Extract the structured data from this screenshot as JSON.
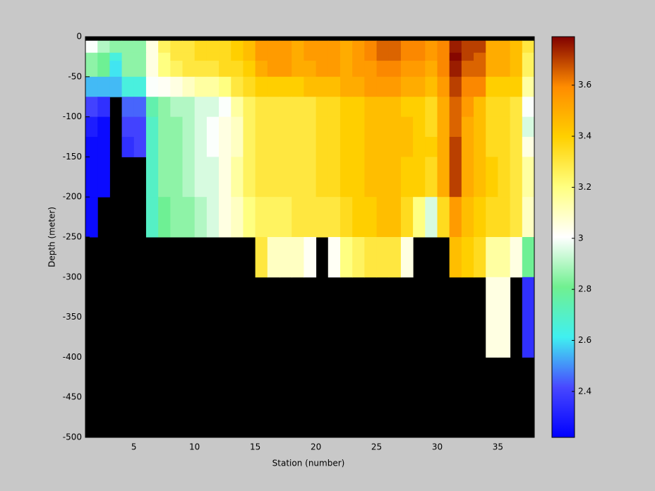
{
  "chart_data": {
    "type": "heatmap",
    "xlabel": "Station (number)",
    "ylabel": "Depth (meter)",
    "x": [
      1,
      2,
      3,
      4,
      5,
      6,
      7,
      8,
      9,
      10,
      11,
      12,
      13,
      14,
      15,
      16,
      17,
      18,
      19,
      20,
      21,
      22,
      23,
      24,
      25,
      26,
      27,
      28,
      29,
      30,
      31,
      32,
      33,
      34,
      35,
      36,
      37,
      38
    ],
    "y": [
      0,
      -5,
      -20,
      -30,
      -50,
      -75,
      -100,
      -125,
      -150,
      -200,
      -250,
      -300,
      -400,
      -500
    ],
    "values": [
      [
        null,
        null,
        null,
        null,
        null,
        null,
        null,
        null,
        null,
        null,
        null,
        null,
        null,
        null,
        null,
        null,
        null,
        null,
        null,
        null,
        null,
        null,
        null,
        null,
        null,
        null,
        null,
        null,
        null,
        null,
        null,
        null,
        null,
        null,
        null,
        null,
        null
      ],
      [
        3.0,
        2.9,
        2.85,
        2.85,
        2.85,
        3.05,
        3.25,
        3.3,
        3.3,
        3.35,
        3.35,
        3.35,
        3.4,
        3.45,
        3.55,
        3.55,
        3.55,
        3.5,
        3.55,
        3.55,
        3.55,
        3.5,
        3.55,
        3.6,
        3.65,
        3.65,
        3.6,
        3.6,
        3.55,
        3.6,
        3.75,
        3.7,
        3.7,
        3.5,
        3.5,
        3.45,
        3.3
      ],
      [
        2.85,
        2.8,
        2.65,
        2.85,
        2.85,
        3.05,
        3.2,
        3.3,
        3.3,
        3.35,
        3.35,
        3.35,
        3.4,
        3.45,
        3.55,
        3.55,
        3.55,
        3.5,
        3.55,
        3.55,
        3.55,
        3.5,
        3.55,
        3.6,
        3.65,
        3.65,
        3.6,
        3.6,
        3.55,
        3.6,
        3.78,
        3.7,
        3.65,
        3.5,
        3.5,
        3.45,
        3.25
      ],
      [
        2.85,
        2.8,
        2.6,
        2.85,
        2.85,
        3.05,
        3.2,
        3.25,
        3.3,
        3.3,
        3.3,
        3.35,
        3.35,
        3.4,
        3.5,
        3.55,
        3.55,
        3.5,
        3.5,
        3.55,
        3.55,
        3.5,
        3.55,
        3.55,
        3.6,
        3.6,
        3.55,
        3.55,
        3.5,
        3.6,
        3.75,
        3.65,
        3.65,
        3.5,
        3.5,
        3.45,
        3.25
      ],
      [
        2.55,
        2.55,
        2.55,
        2.65,
        2.65,
        3.0,
        3.02,
        3.05,
        3.1,
        3.15,
        3.15,
        3.2,
        3.3,
        3.35,
        3.4,
        3.4,
        3.4,
        3.4,
        3.45,
        3.45,
        3.45,
        3.5,
        3.5,
        3.55,
        3.55,
        3.55,
        3.5,
        3.5,
        3.45,
        3.55,
        3.7,
        3.6,
        3.6,
        3.4,
        3.4,
        3.4,
        3.15
      ],
      [
        2.4,
        2.35,
        null,
        2.45,
        2.45,
        2.75,
        2.85,
        2.9,
        2.9,
        2.95,
        2.95,
        3.0,
        3.15,
        3.25,
        3.3,
        3.3,
        3.3,
        3.3,
        3.3,
        3.35,
        3.35,
        3.4,
        3.4,
        3.45,
        3.45,
        3.45,
        3.4,
        3.4,
        3.35,
        3.5,
        3.65,
        3.55,
        3.45,
        3.35,
        3.35,
        3.3,
        3.0
      ],
      [
        2.3,
        2.25,
        null,
        2.4,
        2.4,
        2.7,
        2.85,
        2.85,
        2.9,
        2.95,
        3.0,
        3.05,
        3.1,
        3.25,
        3.3,
        3.3,
        3.3,
        3.3,
        3.3,
        3.35,
        3.35,
        3.4,
        3.4,
        3.45,
        3.45,
        3.45,
        3.45,
        3.4,
        3.35,
        3.5,
        3.65,
        3.5,
        3.45,
        3.35,
        3.35,
        3.3,
        2.95
      ],
      [
        2.25,
        2.25,
        null,
        2.35,
        2.4,
        2.7,
        2.85,
        2.85,
        2.9,
        2.95,
        3.0,
        3.05,
        3.1,
        3.25,
        3.3,
        3.3,
        3.3,
        3.3,
        3.3,
        3.35,
        3.35,
        3.4,
        3.4,
        3.45,
        3.45,
        3.45,
        3.45,
        3.4,
        3.4,
        3.5,
        3.7,
        3.5,
        3.45,
        3.35,
        3.35,
        3.3,
        3.05
      ],
      [
        2.25,
        2.25,
        null,
        null,
        null,
        2.7,
        2.85,
        2.85,
        2.9,
        2.95,
        2.95,
        3.05,
        3.15,
        3.25,
        3.3,
        3.3,
        3.3,
        3.3,
        3.3,
        3.35,
        3.35,
        3.4,
        3.4,
        3.45,
        3.45,
        3.45,
        3.4,
        3.4,
        3.35,
        3.5,
        3.7,
        3.5,
        3.45,
        3.4,
        3.35,
        3.3,
        3.15
      ],
      [
        2.25,
        null,
        null,
        null,
        null,
        2.7,
        2.8,
        2.85,
        2.85,
        2.9,
        2.95,
        3.05,
        3.1,
        3.2,
        3.25,
        3.25,
        3.25,
        3.3,
        3.3,
        3.3,
        3.3,
        3.35,
        3.4,
        3.4,
        3.45,
        3.45,
        3.35,
        3.2,
        2.95,
        3.35,
        3.55,
        3.45,
        3.4,
        3.35,
        3.35,
        3.3,
        3.1
      ],
      [
        null,
        null,
        null,
        null,
        null,
        null,
        null,
        null,
        null,
        null,
        null,
        null,
        null,
        null,
        3.3,
        3.1,
        3.1,
        3.1,
        3.02,
        null,
        3.02,
        3.2,
        3.25,
        3.3,
        3.3,
        3.3,
        3.05,
        null,
        null,
        null,
        3.45,
        3.4,
        3.35,
        3.15,
        3.15,
        3.05,
        2.8
      ],
      [
        null,
        null,
        null,
        null,
        null,
        null,
        null,
        null,
        null,
        null,
        null,
        null,
        null,
        null,
        null,
        null,
        null,
        null,
        null,
        null,
        null,
        null,
        null,
        null,
        null,
        null,
        null,
        null,
        null,
        null,
        null,
        null,
        null,
        3.05,
        3.05,
        null,
        2.35
      ],
      [
        null,
        null,
        null,
        null,
        null,
        null,
        null,
        null,
        null,
        null,
        null,
        null,
        null,
        null,
        null,
        null,
        null,
        null,
        null,
        null,
        null,
        null,
        null,
        null,
        null,
        null,
        null,
        null,
        null,
        null,
        null,
        null,
        null,
        null,
        null,
        null,
        null
      ]
    ],
    "xlim": [
      1,
      38
    ],
    "ylim": [
      -500,
      0
    ],
    "xticks": [
      5,
      10,
      15,
      20,
      25,
      30,
      35
    ],
    "yticks": [
      -500,
      -450,
      -400,
      -350,
      -300,
      -250,
      -200,
      -150,
      -100,
      -50,
      0
    ],
    "clim": [
      2.22,
      3.79
    ],
    "colorbar_ticks": [
      2.4,
      2.6,
      2.8,
      3,
      3.2,
      3.4,
      3.6
    ],
    "colormap": [
      "#0000ff",
      "#4848ff",
      "#40f0f0",
      "#70f090",
      "#ffffff",
      "#ffff80",
      "#ffd000",
      "#ff8c00",
      "#800000"
    ],
    "nan_color": "#000000"
  }
}
